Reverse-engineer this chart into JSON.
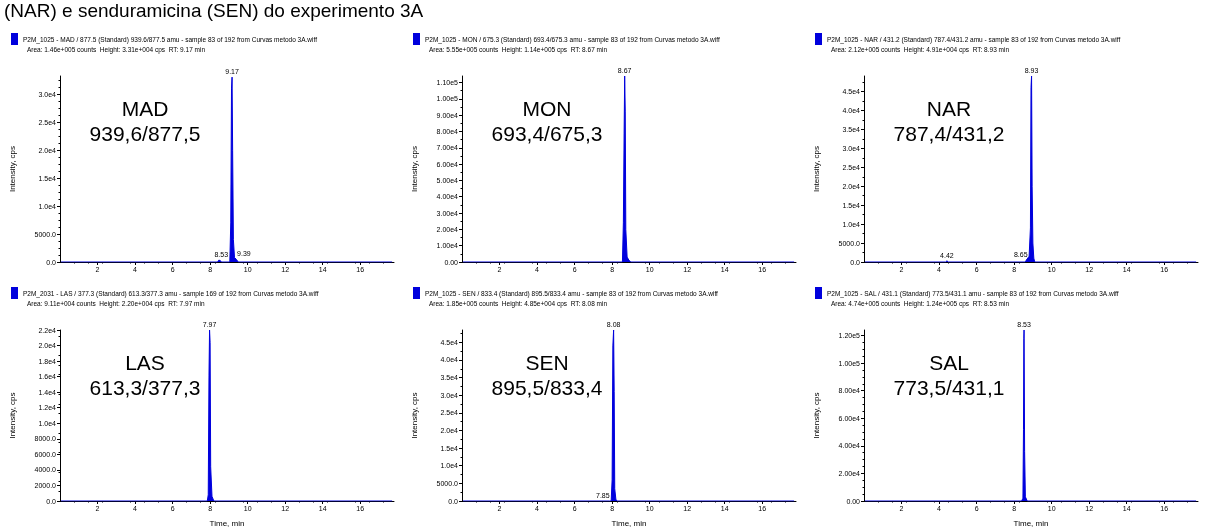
{
  "chart_data": [
    {
      "type": "area",
      "title": "(NAR) e senduramicina (SEN) do experimento 3A",
      "subtitle": "Area: 1.46e+005 counts  Height: 3.31e+004 cps  RT: 9.17 min",
      "ylabel": "Intensity, cps",
      "legend": "top left",
      "x": [
        0.05,
        8.4,
        8.45,
        8.53,
        8.6,
        9.05,
        9.1,
        9.14,
        9.17,
        9.2,
        9.24,
        9.3,
        9.39,
        9.5,
        17.7
      ],
      "series": [
        {
          "name": "P2M_1025 - MAD / 877.5 (Standard) 939.6/877.5 amu - sample 83 of 192 from Curvas metodo 3A.wiff",
          "color": "#0000dd",
          "values": [
            0,
            0,
            300,
            300,
            0,
            0,
            7000,
            31000,
            33100,
            20000,
            4000,
            800,
            500,
            0,
            0
          ]
        }
      ],
      "xlim": [
        0,
        17.8
      ],
      "xticks": [
        2,
        4,
        6,
        8,
        10,
        12,
        14,
        16
      ],
      "ylim": [
        0,
        33300
      ],
      "yticks": [
        {
          "value": 0,
          "label": "0.0"
        },
        {
          "value": 5000,
          "label": "5000.0"
        },
        {
          "value": 10000,
          "label": "1.0e4"
        },
        {
          "value": 15000,
          "label": "1.5e4"
        },
        {
          "value": 20000,
          "label": "2.0e4"
        },
        {
          "value": 25000,
          "label": "2.5e4"
        },
        {
          "value": 30000,
          "label": "3.0e4"
        }
      ],
      "annotations": [
        "MAD\n939,6/877,5",
        {
          "text": "9.17",
          "x": 9.17,
          "y": 33100
        },
        {
          "text": "8.53",
          "x": 8.53,
          "y": 300
        },
        {
          "text": "9.39",
          "x": 9.39,
          "y": 500
        }
      ]
    },
    {
      "type": "area",
      "subtitle": "Area: 5.55e+005 counts  Height: 1.14e+005 cps  RT: 8.67 min",
      "ylabel": "Intensity, cps",
      "legend": "top left",
      "x": [
        0.05,
        8.55,
        8.6,
        8.64,
        8.67,
        8.7,
        8.73,
        8.8,
        8.9,
        9.0,
        17.7
      ],
      "series": [
        {
          "name": "P2M_1025 - MON / 675.3 (Standard) 693.4/675.3 amu - sample 83 of 192 from Curvas metodo 3A.wiff",
          "color": "#0000dd",
          "values": [
            0,
            0,
            24000,
            79000,
            114000,
            92000,
            20000,
            3000,
            1000,
            0,
            0
          ]
        }
      ],
      "xlim": [
        0,
        17.8
      ],
      "xticks": [
        2,
        4,
        6,
        8,
        10,
        12,
        14,
        16
      ],
      "ylim": [
        0,
        114000
      ],
      "yticks": [
        {
          "value": 0,
          "label": "0.00"
        },
        {
          "value": 10000,
          "label": "1.00e4"
        },
        {
          "value": 20000,
          "label": "2.00e4"
        },
        {
          "value": 30000,
          "label": "3.00e4"
        },
        {
          "value": 40000,
          "label": "4.00e4"
        },
        {
          "value": 50000,
          "label": "5.00e4"
        },
        {
          "value": 60000,
          "label": "6.00e4"
        },
        {
          "value": 70000,
          "label": "7.00e4"
        },
        {
          "value": 80000,
          "label": "8.00e4"
        },
        {
          "value": 90000,
          "label": "9.00e4"
        },
        {
          "value": 100000,
          "label": "1.00e5"
        },
        {
          "value": 110000,
          "label": "1.10e5"
        }
      ],
      "annotations": [
        "MON\n693,4/675,3",
        {
          "text": "8.67",
          "x": 8.67,
          "y": 114000
        }
      ]
    },
    {
      "type": "area",
      "subtitle": "Area: 2.12e+005 counts  Height: 4.91e+004 cps  RT: 8.93 min",
      "ylabel": "Intensity, cps",
      "legend": "top left",
      "x": [
        0.05,
        4.35,
        4.42,
        4.5,
        8.6,
        8.65,
        8.8,
        8.87,
        8.9,
        8.93,
        8.96,
        9.0,
        9.05,
        9.1,
        17.7
      ],
      "series": [
        {
          "name": "P2M_1025 - NAR / 431.2 (Standard) 787.4/431.2 amu - sample 83 of 192 from Curvas metodo 3A.wiff",
          "color": "#0000dd",
          "values": [
            0,
            0,
            300,
            0,
            0,
            500,
            1500,
            9000,
            46000,
            49100,
            20000,
            5000,
            1000,
            0,
            0
          ]
        }
      ],
      "xlim": [
        0,
        17.8
      ],
      "xticks": [
        2,
        4,
        6,
        8,
        10,
        12,
        14,
        16
      ],
      "ylim": [
        0,
        49100
      ],
      "yticks": [
        {
          "value": 0,
          "label": "0.0"
        },
        {
          "value": 5000,
          "label": "5000.0"
        },
        {
          "value": 10000,
          "label": "1.0e4"
        },
        {
          "value": 15000,
          "label": "1.5e4"
        },
        {
          "value": 20000,
          "label": "2.0e4"
        },
        {
          "value": 25000,
          "label": "2.5e4"
        },
        {
          "value": 30000,
          "label": "3.0e4"
        },
        {
          "value": 35000,
          "label": "3.5e4"
        },
        {
          "value": 40000,
          "label": "4.0e4"
        },
        {
          "value": 45000,
          "label": "4.5e4"
        }
      ],
      "annotations": [
        "NAR\n787,4/431,2",
        {
          "text": "8.93",
          "x": 8.93,
          "y": 49100
        },
        {
          "text": "4.42",
          "x": 4.42,
          "y": 300
        },
        {
          "text": "8.65",
          "x": 8.65,
          "y": 500
        }
      ]
    },
    {
      "type": "area",
      "subtitle": "Area: 9.11e+004 counts  Height: 2.20e+004 cps  RT: 7.97 min",
      "xlabel": "Time, min",
      "ylabel": "Intensity, cps",
      "legend": "top left",
      "x": [
        0.05,
        7.85,
        7.9,
        7.94,
        7.97,
        8.0,
        8.03,
        8.1,
        8.2,
        17.7
      ],
      "series": [
        {
          "name": "P2M_2031 - LAS / 377.3 (Standard) 613.3/377.3 amu - sample 169 of 192 from Curvas metodo 3A.wiff",
          "color": "#0000dd",
          "values": [
            0,
            0,
            800,
            16200,
            22000,
            20400,
            4400,
            600,
            0,
            0
          ]
        }
      ],
      "xlim": [
        0,
        17.8
      ],
      "xticks": [
        2,
        4,
        6,
        8,
        10,
        12,
        14,
        16
      ],
      "ylim": [
        0,
        22000
      ],
      "yticks": [
        {
          "value": 0,
          "label": "0.0"
        },
        {
          "value": 2000,
          "label": "2000.0"
        },
        {
          "value": 4000,
          "label": "4000.0"
        },
        {
          "value": 6000,
          "label": "6000.0"
        },
        {
          "value": 8000,
          "label": "8000.0"
        },
        {
          "value": 10000,
          "label": "1.0e4"
        },
        {
          "value": 12000,
          "label": "1.2e4"
        },
        {
          "value": 14000,
          "label": "1.4e4"
        },
        {
          "value": 16000,
          "label": "1.6e4"
        },
        {
          "value": 18000,
          "label": "1.8e4"
        },
        {
          "value": 20000,
          "label": "2.0e4"
        },
        {
          "value": 22000,
          "label": "2.2e4"
        }
      ],
      "annotations": [
        "LAS\n613,3/377,3",
        {
          "text": "7.97",
          "x": 7.97,
          "y": 22000
        }
      ]
    },
    {
      "type": "area",
      "subtitle": "Area: 1.85e+005 counts  Height: 4.85e+004 cps  RT: 8.08 min",
      "xlabel": "Time, min",
      "ylabel": "Intensity, cps",
      "legend": "top left",
      "x": [
        0.05,
        7.85,
        7.95,
        8.0,
        8.04,
        8.08,
        8.11,
        8.14,
        8.2,
        8.25,
        17.7
      ],
      "series": [
        {
          "name": "P2M_1025 - SEN / 833.4 (Standard) 895.5/833.4 amu - sample 83 of 192 from Curvas metodo 3A.wiff",
          "color": "#0000dd",
          "values": [
            0,
            0,
            0,
            6000,
            44000,
            48500,
            31000,
            3500,
            500,
            0,
            0
          ]
        }
      ],
      "xlim": [
        0,
        17.8
      ],
      "xticks": [
        2,
        4,
        6,
        8,
        10,
        12,
        14,
        16
      ],
      "ylim": [
        0,
        48500
      ],
      "yticks": [
        {
          "value": 0,
          "label": "0.0"
        },
        {
          "value": 5000,
          "label": "5000.0"
        },
        {
          "value": 10000,
          "label": "1.0e4"
        },
        {
          "value": 15000,
          "label": "1.5e4"
        },
        {
          "value": 20000,
          "label": "2.0e4"
        },
        {
          "value": 25000,
          "label": "2.5e4"
        },
        {
          "value": 30000,
          "label": "3.0e4"
        },
        {
          "value": 35000,
          "label": "3.5e4"
        },
        {
          "value": 40000,
          "label": "4.0e4"
        },
        {
          "value": 45000,
          "label": "4.5e4"
        }
      ],
      "annotations": [
        "SEN\n895,5/833,4",
        {
          "text": "8.08",
          "x": 8.08,
          "y": 48500
        },
        {
          "text": "7.85",
          "x": 7.85,
          "y": 0
        }
      ]
    },
    {
      "type": "area",
      "subtitle": "Area: 4.74e+005 counts  Height: 1.24e+005 cps  RT: 8.53 min",
      "xlabel": "Time, min",
      "ylabel": "Intensity, cps",
      "legend": "top left",
      "x": [
        0.05,
        8.4,
        8.47,
        8.5,
        8.52,
        8.53,
        8.56,
        8.6,
        8.7,
        17.7
      ],
      "series": [
        {
          "name": "P2M_1025 - SAL / 431.1 (Standard) 773.5/431.1 amu - sample 83 of 192 from Curvas metodo 3A.wiff",
          "color": "#0000dd",
          "values": [
            0,
            0,
            2000,
            52000,
            118000,
            124000,
            36000,
            3000,
            0,
            0
          ]
        }
      ],
      "xlim": [
        0,
        17.8
      ],
      "xticks": [
        2,
        4,
        6,
        8,
        10,
        12,
        14,
        16
      ],
      "ylim": [
        0,
        124000
      ],
      "yticks": [
        {
          "value": 0,
          "label": "0.00"
        },
        {
          "value": 20000,
          "label": "2.00e4"
        },
        {
          "value": 40000,
          "label": "4.00e4"
        },
        {
          "value": 60000,
          "label": "6.00e4"
        },
        {
          "value": 80000,
          "label": "8.00e4"
        },
        {
          "value": 100000,
          "label": "1.00e5"
        },
        {
          "value": 120000,
          "label": "1.20e5"
        }
      ],
      "annotations": [
        "SAL\n773,5/431,1",
        {
          "text": "8.53",
          "x": 8.53,
          "y": 124000
        }
      ]
    }
  ]
}
